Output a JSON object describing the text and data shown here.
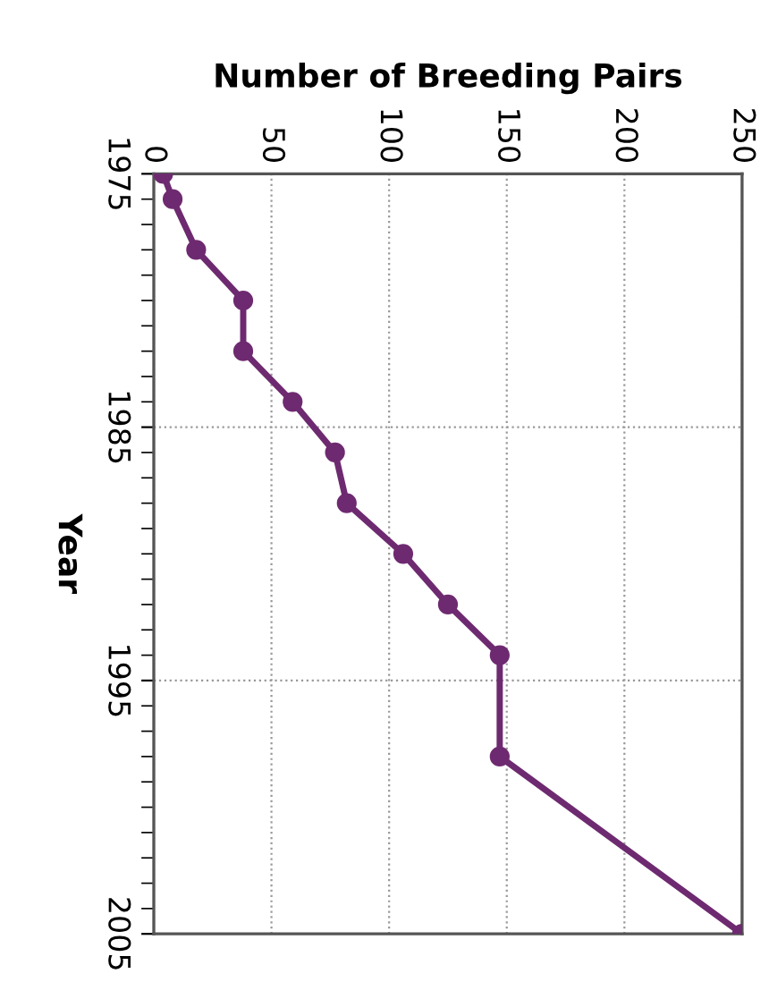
{
  "chart_data": {
    "type": "line",
    "orientation": "horizontal",
    "xlabel": "Number of Breeding Pairs",
    "ylabel": "Year",
    "x": [
      1975,
      1976,
      1978,
      1980,
      1982,
      1984,
      1986,
      1988,
      1990,
      1992,
      1994,
      1998,
      2005
    ],
    "series": [
      {
        "color": "#6e2a70",
        "values": [
          4,
          8,
          18,
          38,
          38,
          59,
          77,
          82,
          106,
          125,
          147,
          147,
          250
        ]
      }
    ],
    "xlim": [
      0,
      250
    ],
    "xticks": [
      0,
      50,
      100,
      150,
      200,
      250
    ],
    "ylim": [
      2005,
      1975
    ],
    "yticks": [
      1975,
      {
        "value": 1976,
        "label": null
      },
      {
        "value": 1977,
        "label": null
      },
      {
        "value": 1978,
        "label": null
      },
      {
        "value": 1979,
        "label": null
      },
      {
        "value": 1980,
        "label": null
      },
      {
        "value": 1981,
        "label": null
      },
      {
        "value": 1982,
        "label": null
      },
      {
        "value": 1983,
        "label": null
      },
      {
        "value": 1984,
        "label": null
      },
      1985,
      {
        "value": 1986,
        "label": null
      },
      {
        "value": 1987,
        "label": null
      },
      {
        "value": 1988,
        "label": null
      },
      {
        "value": 1989,
        "label": null
      },
      {
        "value": 1990,
        "label": null
      },
      {
        "value": 1991,
        "label": null
      },
      {
        "value": 1992,
        "label": null
      },
      {
        "value": 1993,
        "label": null
      },
      {
        "value": 1994,
        "label": null
      },
      1995,
      {
        "value": 1996,
        "label": null
      },
      {
        "value": 1997,
        "label": null
      },
      {
        "value": 1998,
        "label": null
      },
      {
        "value": 1999,
        "label": null
      },
      {
        "value": 2000,
        "label": null
      },
      {
        "value": 2001,
        "label": null
      },
      {
        "value": 2002,
        "label": null
      },
      {
        "value": 2003,
        "label": null
      },
      {
        "value": 2004,
        "label": null
      },
      2005
    ],
    "grid": true,
    "marker": "circle",
    "line_style": "solid",
    "legend": false
  }
}
